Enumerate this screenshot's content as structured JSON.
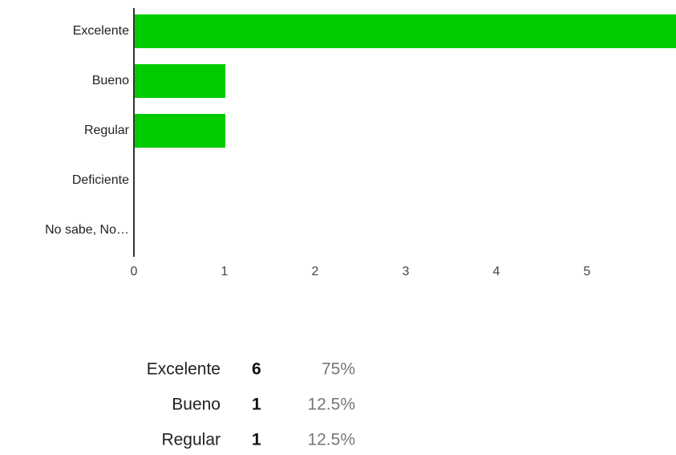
{
  "chart_data": {
    "type": "bar",
    "orientation": "horizontal",
    "categories": [
      "Excelente",
      "Bueno",
      "Regular",
      "Deficiente",
      "No sabe, No…"
    ],
    "values": [
      6,
      1,
      1,
      0,
      0
    ],
    "color": "#00cc00",
    "xlim": [
      0,
      6
    ],
    "xticks": [
      0,
      1,
      2,
      3,
      4,
      5
    ],
    "grid": false
  },
  "table": {
    "rows": [
      [
        "Excelente",
        6,
        "75%"
      ],
      [
        "Bueno",
        1,
        "12.5%"
      ],
      [
        "Regular",
        1,
        "12.5%"
      ]
    ]
  }
}
